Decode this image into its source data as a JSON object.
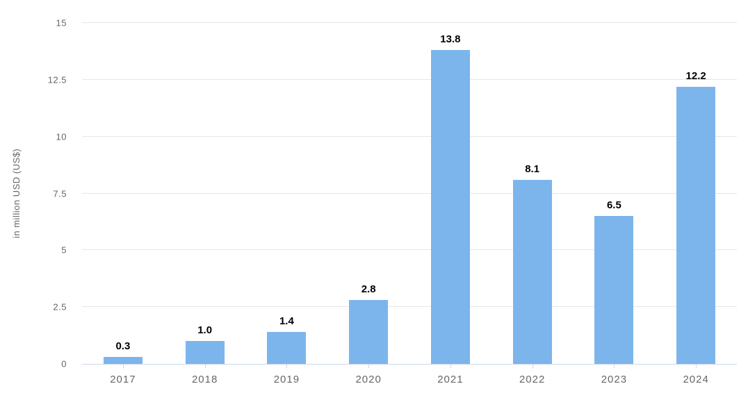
{
  "chart_data": {
    "type": "bar",
    "title": "",
    "categories": [
      "2017",
      "2018",
      "2019",
      "2020",
      "2021",
      "2022",
      "2023",
      "2024"
    ],
    "values": [
      0.3,
      1.0,
      1.4,
      2.8,
      13.8,
      8.1,
      6.5,
      12.2
    ],
    "value_labels": [
      "0.3",
      "1.0",
      "1.4",
      "2.8",
      "13.8",
      "8.1",
      "6.5",
      "12.2"
    ],
    "xlabel": "",
    "ylabel": "in million USD (US$)",
    "ylim": [
      0,
      15
    ],
    "yticks": [
      0,
      2.5,
      5,
      7.5,
      10,
      12.5,
      15
    ],
    "ytick_labels": [
      "0",
      "2.5",
      "5",
      "7.5",
      "10",
      "12.5",
      "15"
    ],
    "grid": true,
    "legend": "none",
    "bar_color": "#7cb5ec"
  },
  "colors": {
    "bar": "#7cb5ec",
    "gridline": "#e6e6e6",
    "axis_line": "#ccd6eb",
    "tick_text": "#666666",
    "value_label_text": "#000000",
    "background": "#ffffff"
  }
}
